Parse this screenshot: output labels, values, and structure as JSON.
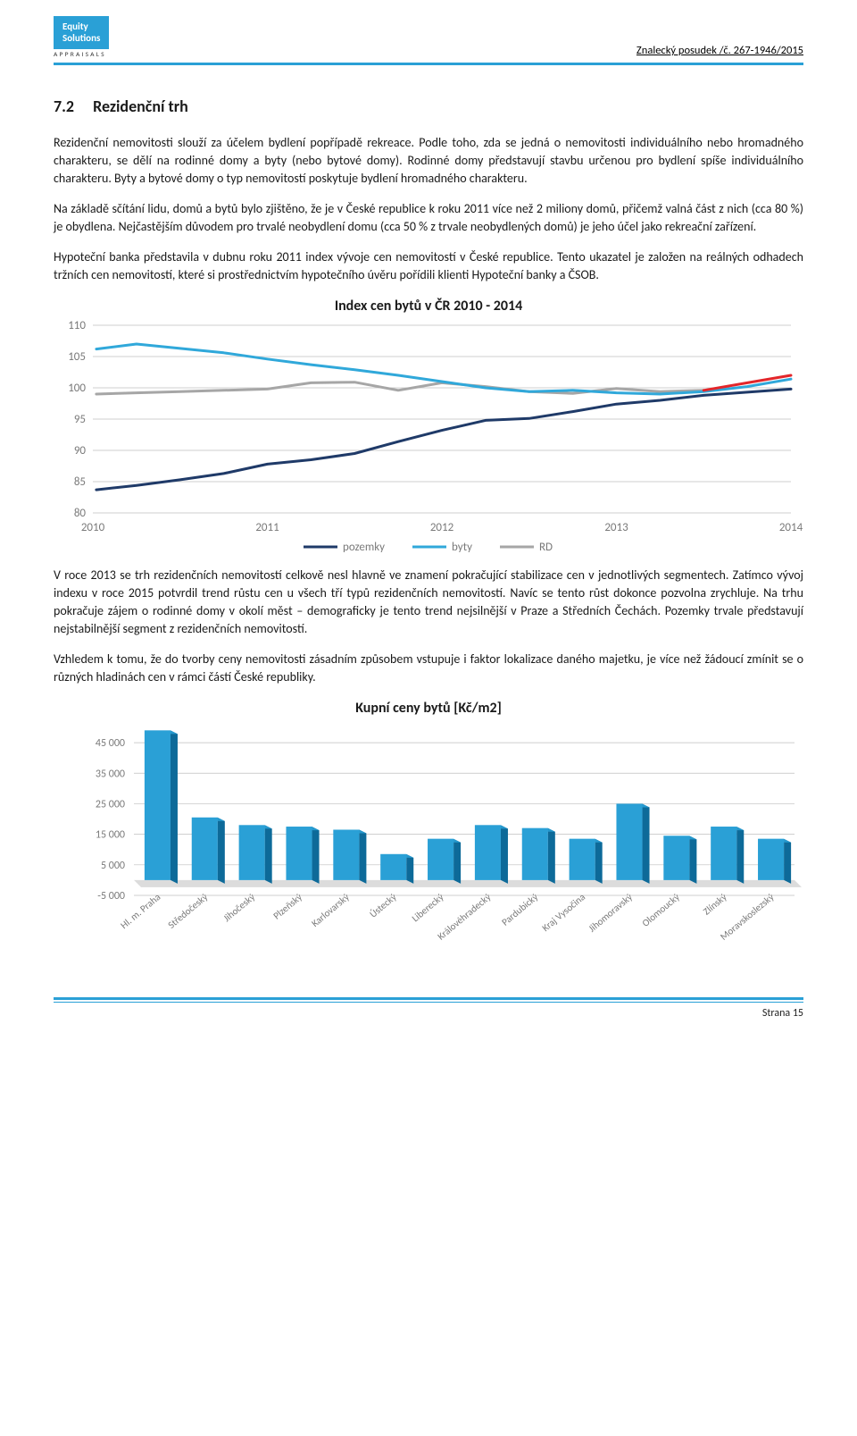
{
  "header": {
    "logo_line1": "Equity",
    "logo_line2": "Solutions",
    "logo_sub": "APPRAISALS",
    "doc_ref": "Znalecký posudek /č. 267-1946/2015"
  },
  "section": {
    "num": "7.2",
    "title": "Rezidenční trh"
  },
  "paragraphs": {
    "p1": "Rezidenční nemovitosti slouží za účelem bydlení popřípadě rekreace. Podle toho, zda se jedná o nemovitosti individuálního nebo hromadného charakteru, se dělí na rodinné domy a byty (nebo bytové domy). Rodinné domy představují stavbu určenou pro bydlení spíše individuálního charakteru. Byty a bytové domy o typ nemovitostí poskytuje bydlení hromadného charakteru.",
    "p2": "Na základě sčítání lidu, domů a bytů bylo zjištěno, že je v České republice k roku 2011 více než 2 miliony domů, přičemž valná část z nich (cca 80 %) je obydlena. Nejčastějším důvodem pro trvalé neobydlení domu (cca 50 % z trvale neobydlených domů) je jeho účel jako rekreační zařízení.",
    "p3": "Hypoteční banka představila v dubnu roku 2011 index vývoje cen nemovitostí v České republice. Tento ukazatel je založen na reálných odhadech tržních cen nemovitostí, které si prostřednictvím hypotečního úvěru pořídili klienti Hypoteční banky a ČSOB.",
    "p4": "V roce 2013 se trh rezidenčních nemovitostí celkově nesl hlavně ve znamení pokračující stabilizace cen v jednotlivých segmentech. Zatímco vývoj indexu v roce 2015 potvrdil trend růstu cen u všech tří typů rezidenčních nemovitostí. Navíc se tento růst dokonce pozvolna zrychluje. Na trhu pokračuje zájem o rodinné domy v okolí měst – demograficky je tento trend nejsilnější v Praze a Středních Čechách. Pozemky trvale představují nejstabilnější segment z rezidenčních nemovitostí.",
    "p5": "Vzhledem k tomu, že do tvorby ceny nemovitosti zásadním způsobem vstupuje i faktor lokalizace daného majetku, je více než žádoucí zmínit se o různých hladinách cen v rámci částí České republiky."
  },
  "chart1": {
    "title": "Index cen bytů v ČR 2010 - 2014",
    "type": "line",
    "xTicks": [
      "2010",
      "2011",
      "2012",
      "2013",
      "2014"
    ],
    "yTicks": [
      80,
      85,
      90,
      95,
      100,
      105,
      110
    ],
    "ylim": [
      80,
      110
    ],
    "background": "#ffffff",
    "gridColor": "#bfbfbf",
    "plotAreaFill": "#ffffff",
    "legend": [
      {
        "label": "pozemky",
        "color": "#1f3a68"
      },
      {
        "label": "byty",
        "color": "#30a8da"
      },
      {
        "label": "RD",
        "color": "#a6a6a6"
      }
    ],
    "series": {
      "pozemky": {
        "color": "#1f3a68",
        "stroke": 3,
        "points": [
          [
            0.02,
            83.7
          ],
          [
            0.25,
            84.4
          ],
          [
            0.5,
            85.3
          ],
          [
            0.75,
            86.3
          ],
          [
            1,
            87.8
          ],
          [
            1.25,
            88.5
          ],
          [
            1.5,
            89.5
          ],
          [
            1.75,
            91.4
          ],
          [
            2,
            93.2
          ],
          [
            2.25,
            94.8
          ],
          [
            2.5,
            95.1
          ],
          [
            2.75,
            96.2
          ],
          [
            3,
            97.4
          ],
          [
            3.25,
            98.0
          ],
          [
            3.5,
            98.8
          ],
          [
            3.75,
            99.3
          ],
          [
            4,
            99.8
          ]
        ]
      },
      "byty": {
        "color": "#30a8da",
        "stroke": 3,
        "points": [
          [
            0.02,
            106.2
          ],
          [
            0.25,
            107.0
          ],
          [
            0.5,
            106.3
          ],
          [
            0.75,
            105.6
          ],
          [
            1,
            104.6
          ],
          [
            1.25,
            103.7
          ],
          [
            1.5,
            102.9
          ],
          [
            1.75,
            102.0
          ],
          [
            2,
            101.0
          ],
          [
            2.25,
            100.0
          ],
          [
            2.5,
            99.4
          ],
          [
            2.75,
            99.6
          ],
          [
            3,
            99.2
          ],
          [
            3.25,
            99.0
          ],
          [
            3.5,
            99.4
          ],
          [
            3.75,
            100.2
          ],
          [
            4,
            101.4
          ]
        ]
      },
      "rd": {
        "color": "#a6a6a6",
        "stroke": 3,
        "points": [
          [
            0.02,
            99.0
          ],
          [
            0.25,
            99.2
          ],
          [
            0.5,
            99.4
          ],
          [
            0.75,
            99.6
          ],
          [
            1,
            99.8
          ],
          [
            1.25,
            100.8
          ],
          [
            1.5,
            100.9
          ],
          [
            1.75,
            99.6
          ],
          [
            2,
            100.8
          ],
          [
            2.25,
            100.2
          ],
          [
            2.5,
            99.4
          ],
          [
            2.75,
            99.1
          ],
          [
            3,
            99.9
          ],
          [
            3.25,
            99.4
          ],
          [
            3.5,
            99.6
          ]
        ]
      },
      "rd_tail": {
        "color": "#e3262a",
        "stroke": 3,
        "points": [
          [
            3.5,
            99.6
          ],
          [
            3.75,
            100.8
          ],
          [
            4,
            102.0
          ]
        ]
      }
    }
  },
  "chart2": {
    "title": "Kupní ceny bytů [Kč/m2]",
    "type": "bar",
    "categories": [
      "Hl. m. Praha",
      "Středočeský",
      "Jihočeský",
      "Plzeňský",
      "Karlovarský",
      "Ústecký",
      "Liberecký",
      "Královéhradecký",
      "Pardubický",
      "Kraj Vysočina",
      "Jihomoravský",
      "Olomoucký",
      "Zlínský",
      "Moravskoslezský"
    ],
    "values": [
      49000,
      20500,
      18000,
      17500,
      16500,
      8500,
      13500,
      18000,
      17000,
      13500,
      25000,
      14500,
      17500,
      13500
    ],
    "bar_color": "#2aa0d6",
    "bar_side": "#0d6a99",
    "floor": "#dcdcdc",
    "yTicks": [
      -5000,
      5000,
      15000,
      25000,
      35000,
      45000
    ],
    "ylim": [
      -5000,
      50000
    ],
    "gridColor": "#bfbfbf",
    "label_fontsize": 11
  },
  "footer": {
    "page_label": "Strana 15"
  }
}
